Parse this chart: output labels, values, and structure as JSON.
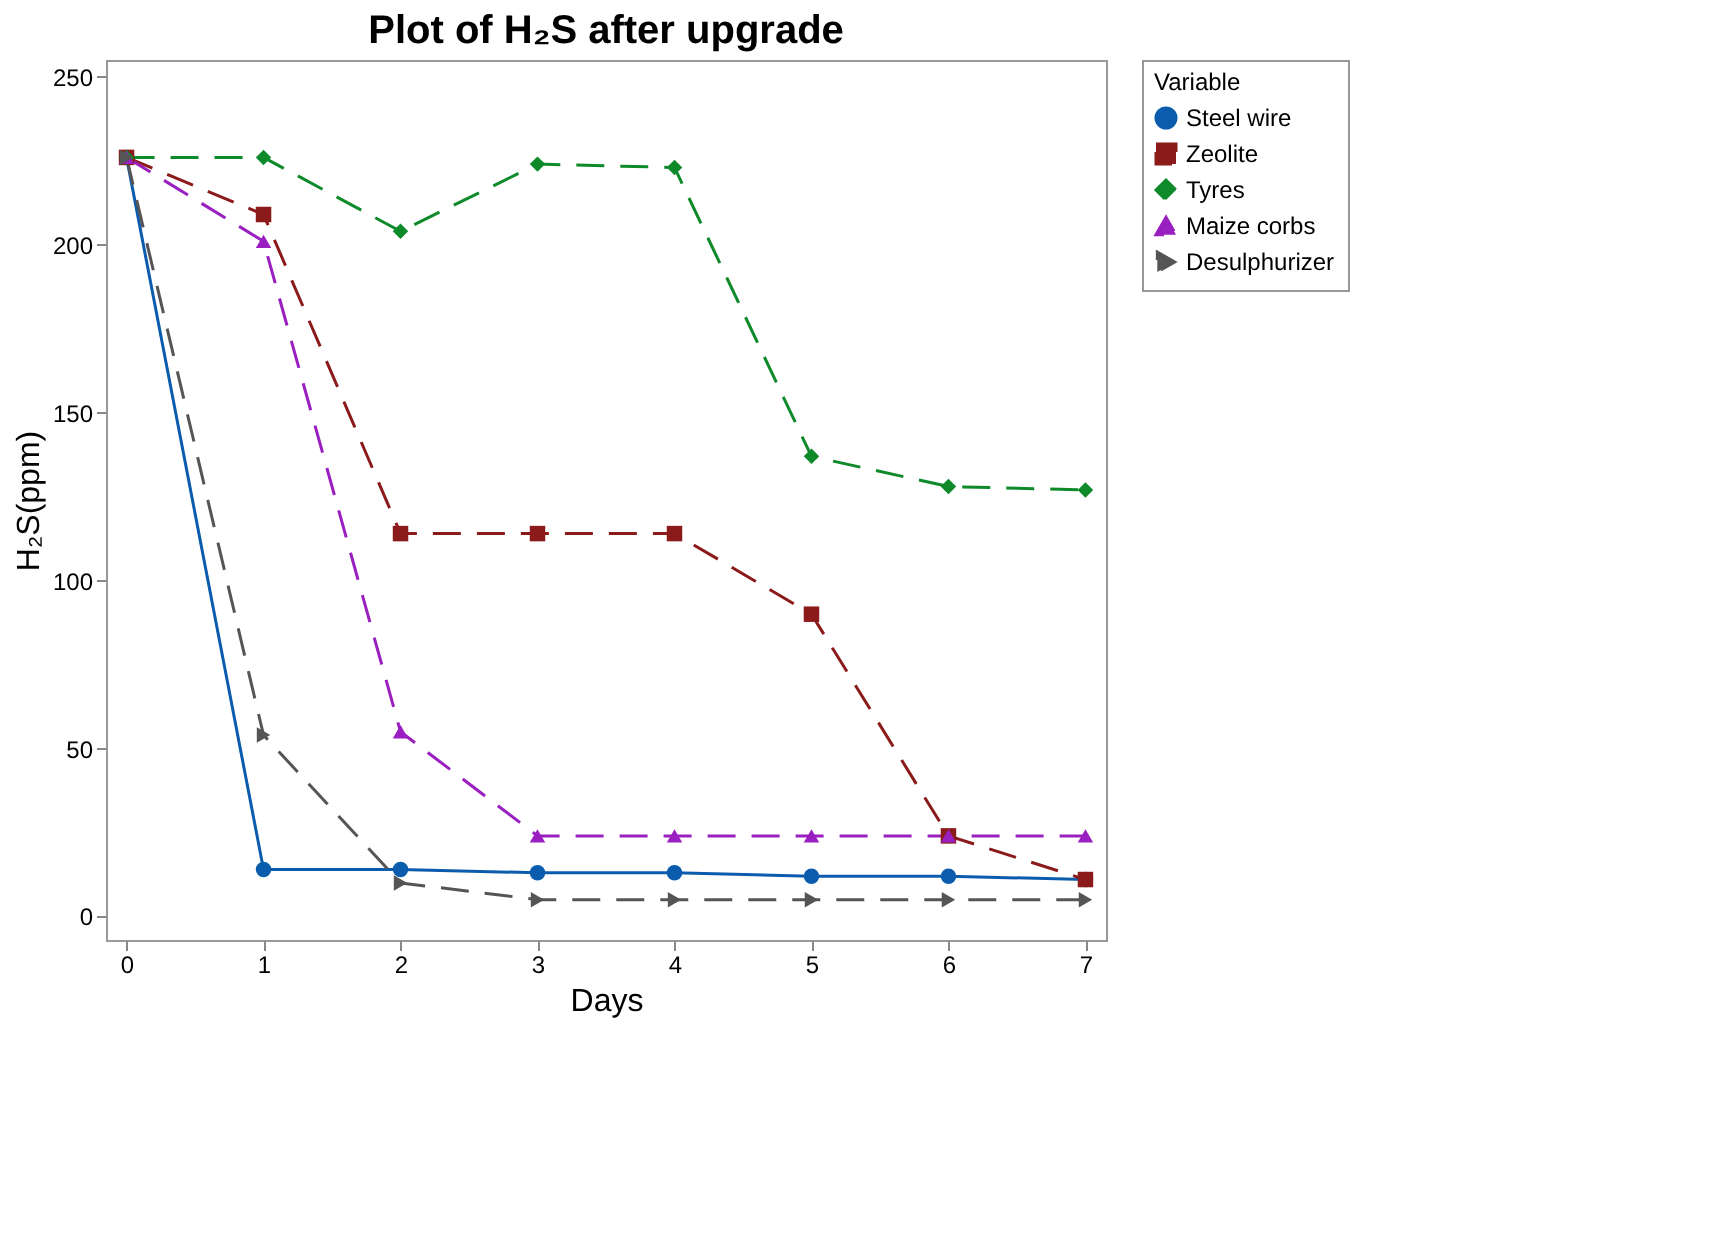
{
  "chart_data": {
    "type": "line",
    "title": "Plot of H₂S after upgrade",
    "xlabel": "Days",
    "ylabel": "H₂S(ppm)",
    "legend_title": "Variable",
    "legend": "top right",
    "x": [
      0,
      1,
      2,
      3,
      4,
      5,
      6,
      7
    ],
    "xlim": [
      -0.15,
      7.15
    ],
    "xticks": [
      0,
      1,
      2,
      3,
      4,
      5,
      6,
      7
    ],
    "ylim": [
      -7,
      255
    ],
    "yticks": [
      0,
      50,
      100,
      150,
      200,
      250
    ],
    "grid": false,
    "series": [
      {
        "name": "Steel wire",
        "color": "#0b5cad",
        "marker": "circle",
        "line_style": "solid",
        "values": [
          226,
          14,
          14,
          13,
          13,
          12,
          12,
          11
        ]
      },
      {
        "name": "Zeolite",
        "color": "#8b1a1a",
        "marker": "square",
        "line_style": "dashed",
        "values": [
          226,
          209,
          114,
          114,
          114,
          90,
          24,
          11
        ]
      },
      {
        "name": "Tyres",
        "color": "#0f8a2a",
        "marker": "diamond",
        "line_style": "dashed",
        "values": [
          226,
          226,
          204,
          224,
          223,
          137,
          128,
          127
        ]
      },
      {
        "name": "Maize corbs",
        "color": "#9a1fc0",
        "marker": "triangle",
        "line_style": "dashed",
        "values": [
          226,
          201,
          55,
          24,
          24,
          24,
          24,
          24
        ]
      },
      {
        "name": "Desulphurizer",
        "color": "#555555",
        "marker": "triangle-right",
        "line_style": "dashed",
        "values": [
          226,
          54,
          10,
          5,
          5,
          5,
          5,
          5
        ]
      }
    ]
  }
}
